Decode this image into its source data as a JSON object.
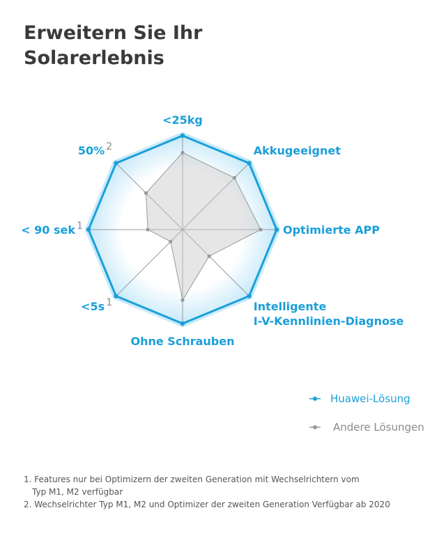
{
  "title_line1": "Erweitern Sie Ihr",
  "title_line2": "Solarerlebnis",
  "chart_data": {
    "type": "radar",
    "axes": [
      {
        "label_lines": [
          "<25kg"
        ],
        "footnote": ""
      },
      {
        "label_lines": [
          "Akkugeeignet"
        ],
        "footnote": ""
      },
      {
        "label_lines": [
          "Optimierte APP"
        ],
        "footnote": ""
      },
      {
        "label_lines": [
          "Intelligente",
          "I-V-Kennlinien-Diagnose"
        ],
        "footnote": ""
      },
      {
        "label_lines": [
          "Ohne Schrauben"
        ],
        "footnote": ""
      },
      {
        "label_lines": [
          "<5s"
        ],
        "footnote": "1"
      },
      {
        "label_lines": [
          "< 90 sek"
        ],
        "footnote": "1"
      },
      {
        "label_lines": [
          "50%"
        ],
        "footnote": "2"
      }
    ],
    "range": [
      0,
      1
    ],
    "series": [
      {
        "name": "Huawei-Lösung",
        "color": "#1a9fd9",
        "values": [
          1,
          1,
          1,
          1,
          1,
          1,
          1,
          1
        ]
      },
      {
        "name": "Andere Lösungen",
        "color": "#999999",
        "values": [
          0.82,
          0.78,
          0.83,
          0.4,
          0.75,
          0.18,
          0.37,
          0.55
        ]
      }
    ],
    "legend_position": "bottom-right"
  },
  "footnotes": {
    "line1": "1. Features nur bei Optimizern der zweiten Generation mit Wechselrichtern vom",
    "line1b": "Typ M1, M2 verfügbar",
    "line2": "2. Wechselrichter Typ M1, M2 und Optimizer der zweiten Generation Verfügbar ab 2020"
  }
}
